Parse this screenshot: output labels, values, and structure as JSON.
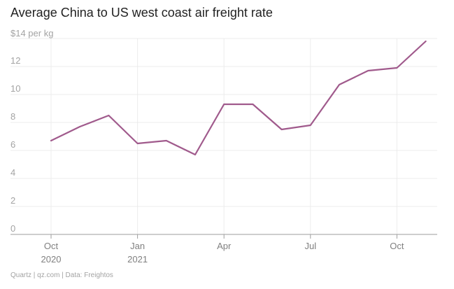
{
  "chart_data": {
    "type": "line",
    "title": "Average China to US west coast air freight rate",
    "ylabel": "$14 per kg",
    "ylim": [
      0,
      14
    ],
    "yticks": [
      "0",
      "2",
      "4",
      "6",
      "8",
      "10",
      "12"
    ],
    "xticks": [
      {
        "month": "Oct",
        "year": "2020"
      },
      {
        "month": "Jan",
        "year": "2021"
      },
      {
        "month": "Apr",
        "year": ""
      },
      {
        "month": "Jul",
        "year": ""
      },
      {
        "month": "Oct",
        "year": ""
      }
    ],
    "grid": true,
    "series": [
      {
        "color": "#a05a8c",
        "x": [
          "2020-10",
          "2020-11",
          "2020-12",
          "2021-01",
          "2021-02",
          "2021-03",
          "2021-04",
          "2021-05",
          "2021-06",
          "2021-07",
          "2021-08",
          "2021-09",
          "2021-10",
          "2021-11"
        ],
        "values": [
          6.7,
          7.7,
          8.5,
          6.5,
          6.7,
          5.7,
          9.3,
          9.3,
          7.5,
          7.8,
          10.7,
          11.7,
          11.9,
          13.8
        ]
      }
    ]
  },
  "footer": "Quartz | qz.com | Data: Freightos"
}
